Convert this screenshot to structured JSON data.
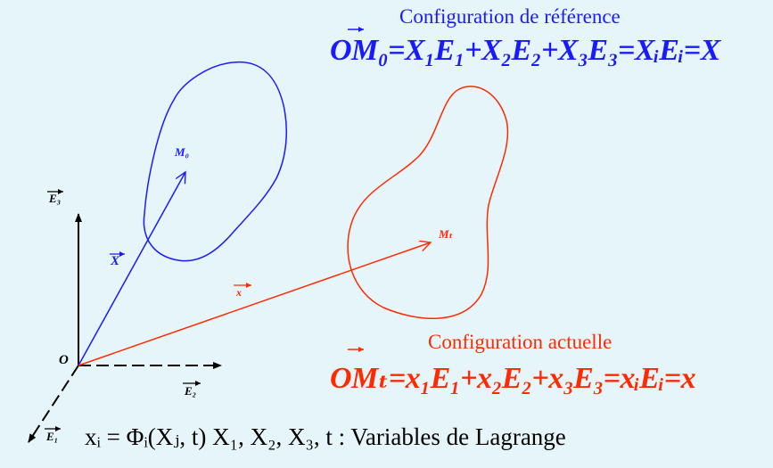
{
  "labels": {
    "config_reference": "Configuration  de référence",
    "config_actuelle": "Configuration  actuelle",
    "eq_reference": "OM₀=X₁E₁+X₂E₂+X₃E₃=XᵢEᵢ=X",
    "eq_actuelle": "OMₜ=x₁E₁+x₂E₂+x₃E₃=xᵢEᵢ=x",
    "lagrange": "xᵢ = Φᵢ(Xⱼ, t)     X₁, X₂, X₃, t : Variables  de Lagrange",
    "origin": "O",
    "e1": "E₁",
    "e2": "E₂",
    "e3": "E₃",
    "m0": "M₀",
    "mt": "Mₜ",
    "vec_X": "X",
    "vec_x": "x"
  },
  "colors": {
    "background": "#e6f5fa",
    "reference": "#1a1aff",
    "actuelle": "#ff2a00",
    "axes": "#000000"
  }
}
